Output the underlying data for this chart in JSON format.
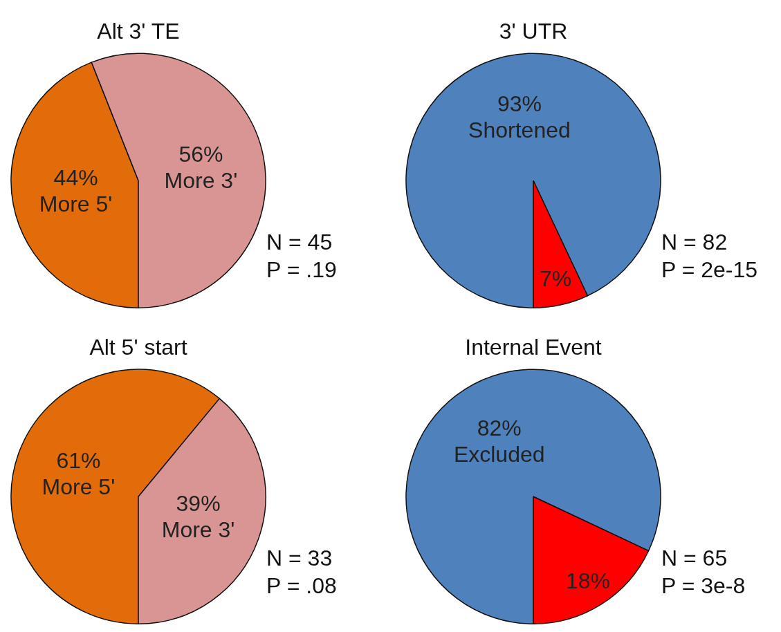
{
  "chart_data": [
    {
      "type": "pie",
      "title": "Alt 3' TE",
      "categories": [
        "More 5'",
        "More 3'"
      ],
      "values": [
        44,
        56
      ],
      "colors": [
        "#e36c0a",
        "#d99594"
      ],
      "value_labels": [
        "44%",
        "56%"
      ],
      "legend": false,
      "annotations": [
        "N = 45",
        "P = .19"
      ]
    },
    {
      "type": "pie",
      "title": "3' UTR",
      "categories": [
        "Shortened",
        null
      ],
      "values": [
        93,
        7
      ],
      "colors": [
        "#4f81bd",
        "#ff0000"
      ],
      "value_labels": [
        "93%",
        "7%"
      ],
      "legend": false,
      "annotations": [
        "N = 82",
        "P = 2e-15"
      ]
    },
    {
      "type": "pie",
      "title": "Alt 5' start",
      "categories": [
        "More 5'",
        "More 3'"
      ],
      "values": [
        61,
        39
      ],
      "colors": [
        "#e36c0a",
        "#d99594"
      ],
      "value_labels": [
        "61%",
        "39%"
      ],
      "legend": false,
      "annotations": [
        "N = 33",
        "P = .08"
      ]
    },
    {
      "type": "pie",
      "title": "Internal Event",
      "categories": [
        "Excluded",
        null
      ],
      "values": [
        82,
        18
      ],
      "colors": [
        "#4f81bd",
        "#ff0000"
      ],
      "value_labels": [
        "82%",
        "18%"
      ],
      "legend": false,
      "annotations": [
        "N = 65",
        "P = 3e-8"
      ]
    }
  ]
}
